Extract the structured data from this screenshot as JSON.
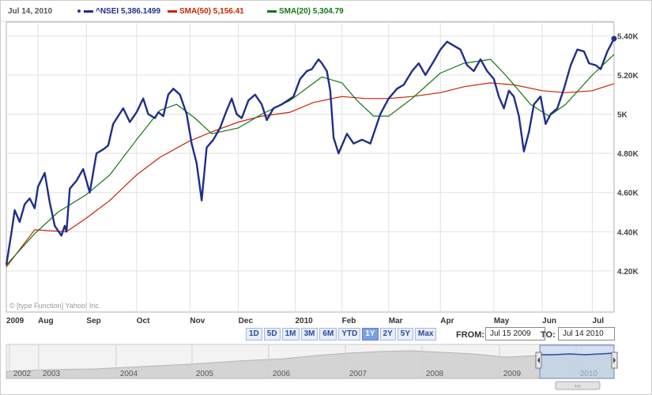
{
  "header": {
    "date": "Jul 14, 2010",
    "series": [
      {
        "label": "^NSEI",
        "value": "5,386.1499",
        "color": "#1f2f8a"
      },
      {
        "label": "SMA(50)",
        "value": "5,156.41",
        "color": "#cc2200"
      },
      {
        "label": "SMA(20)",
        "value": "5,304.79",
        "color": "#117711"
      }
    ]
  },
  "watermark": "© [type Function] Yahoo! Inc.",
  "range_buttons": [
    "1D",
    "5D",
    "1M",
    "3M",
    "6M",
    "YTD",
    "1Y",
    "2Y",
    "5Y",
    "Max"
  ],
  "range_active": "1Y",
  "from_label": "FROM:",
  "from_value": "Jul 15 2009",
  "to_label": "TO:",
  "to_value": "Jul 14 2010",
  "navigator": {
    "years": [
      "2002",
      "2003",
      "2004",
      "2005",
      "2006",
      "2007",
      "2008",
      "2009",
      "2010"
    ],
    "scroll_grip": "‹‹‹"
  },
  "chart_data": {
    "type": "line",
    "x_start": "2009-07-15",
    "x_end": "2010-07-14",
    "x_tick_labels": [
      {
        "label": "2009",
        "date": "2009-07-15",
        "bold": true
      },
      {
        "label": "Aug",
        "date": "2009-08-03"
      },
      {
        "label": "Sep",
        "date": "2009-09-01"
      },
      {
        "label": "Oct",
        "date": "2009-10-01"
      },
      {
        "label": "Nov",
        "date": "2009-11-02"
      },
      {
        "label": "Dec",
        "date": "2009-12-01"
      },
      {
        "label": "2010",
        "date": "2010-01-04",
        "bold": true
      },
      {
        "label": "Feb",
        "date": "2010-02-01"
      },
      {
        "label": "Mar",
        "date": "2010-03-01"
      },
      {
        "label": "Apr",
        "date": "2010-04-01"
      },
      {
        "label": "May",
        "date": "2010-05-03"
      },
      {
        "label": "Jun",
        "date": "2010-06-01"
      },
      {
        "label": "Jul",
        "date": "2010-07-01"
      }
    ],
    "y_ticks": [
      4200,
      4400,
      4600,
      4800,
      5000,
      5200,
      5400
    ],
    "y_tick_labels": [
      "4.20K",
      "4.40K",
      "4.60K",
      "4.80K",
      "5K",
      "5.20K",
      "5.40K"
    ],
    "ylim": [
      3990,
      5470
    ],
    "grid": true,
    "legend_position": "top-left",
    "series": [
      {
        "name": "^NSEI",
        "color": "#1f2f8a",
        "points": [
          [
            "2009-07-15",
            4230
          ],
          [
            "2009-07-18",
            4390
          ],
          [
            "2009-07-20",
            4510
          ],
          [
            "2009-07-23",
            4450
          ],
          [
            "2009-07-26",
            4540
          ],
          [
            "2009-07-29",
            4570
          ],
          [
            "2009-08-01",
            4520
          ],
          [
            "2009-08-03",
            4630
          ],
          [
            "2009-08-07",
            4700
          ],
          [
            "2009-08-10",
            4550
          ],
          [
            "2009-08-13",
            4430
          ],
          [
            "2009-08-17",
            4380
          ],
          [
            "2009-08-19",
            4430
          ],
          [
            "2009-08-20",
            4400
          ],
          [
            "2009-08-22",
            4620
          ],
          [
            "2009-08-26",
            4660
          ],
          [
            "2009-08-30",
            4720
          ],
          [
            "2009-09-03",
            4600
          ],
          [
            "2009-09-07",
            4800
          ],
          [
            "2009-09-11",
            4820
          ],
          [
            "2009-09-14",
            4840
          ],
          [
            "2009-09-17",
            4950
          ],
          [
            "2009-09-20",
            4990
          ],
          [
            "2009-09-23",
            5030
          ],
          [
            "2009-09-27",
            4960
          ],
          [
            "2009-10-01",
            5010
          ],
          [
            "2009-10-05",
            5080
          ],
          [
            "2009-10-08",
            5000
          ],
          [
            "2009-10-12",
            4980
          ],
          [
            "2009-10-14",
            5010
          ],
          [
            "2009-10-17",
            4990
          ],
          [
            "2009-10-20",
            5100
          ],
          [
            "2009-10-23",
            5130
          ],
          [
            "2009-10-27",
            5100
          ],
          [
            "2009-10-31",
            5000
          ],
          [
            "2009-11-03",
            4850
          ],
          [
            "2009-11-06",
            4750
          ],
          [
            "2009-11-09",
            4560
          ],
          [
            "2009-11-12",
            4830
          ],
          [
            "2009-11-16",
            4870
          ],
          [
            "2009-11-20",
            4930
          ],
          [
            "2009-11-24",
            5020
          ],
          [
            "2009-11-27",
            5080
          ],
          [
            "2009-11-30",
            5000
          ],
          [
            "2009-12-03",
            4980
          ],
          [
            "2009-12-07",
            5070
          ],
          [
            "2009-12-11",
            5100
          ],
          [
            "2009-12-15",
            5050
          ],
          [
            "2009-12-18",
            4970
          ],
          [
            "2009-12-22",
            5030
          ],
          [
            "2009-12-27",
            5050
          ],
          [
            "2010-01-03",
            5090
          ],
          [
            "2010-01-07",
            5180
          ],
          [
            "2010-01-11",
            5220
          ],
          [
            "2010-01-14",
            5230
          ],
          [
            "2010-01-18",
            5280
          ],
          [
            "2010-01-20",
            5260
          ],
          [
            "2010-01-23",
            5220
          ],
          [
            "2010-01-25",
            5120
          ],
          [
            "2010-01-27",
            4880
          ],
          [
            "2010-01-30",
            4800
          ],
          [
            "2010-02-04",
            4900
          ],
          [
            "2010-02-08",
            4850
          ],
          [
            "2010-02-13",
            4870
          ],
          [
            "2010-02-18",
            4850
          ],
          [
            "2010-02-24",
            5000
          ],
          [
            "2010-03-01",
            5080
          ],
          [
            "2010-03-06",
            5130
          ],
          [
            "2010-03-10",
            5150
          ],
          [
            "2010-03-15",
            5220
          ],
          [
            "2010-03-19",
            5260
          ],
          [
            "2010-03-23",
            5200
          ],
          [
            "2010-03-28",
            5270
          ],
          [
            "2010-04-01",
            5330
          ],
          [
            "2010-04-05",
            5370
          ],
          [
            "2010-04-09",
            5350
          ],
          [
            "2010-04-13",
            5330
          ],
          [
            "2010-04-17",
            5250
          ],
          [
            "2010-04-21",
            5220
          ],
          [
            "2010-04-25",
            5280
          ],
          [
            "2010-04-29",
            5220
          ],
          [
            "2010-05-03",
            5180
          ],
          [
            "2010-05-06",
            5090
          ],
          [
            "2010-05-09",
            5030
          ],
          [
            "2010-05-12",
            5120
          ],
          [
            "2010-05-15",
            5090
          ],
          [
            "2010-05-18",
            4990
          ],
          [
            "2010-05-21",
            4810
          ],
          [
            "2010-05-24",
            4910
          ],
          [
            "2010-05-27",
            5050
          ],
          [
            "2010-05-31",
            5090
          ],
          [
            "2010-06-03",
            4950
          ],
          [
            "2010-06-06",
            5000
          ],
          [
            "2010-06-10",
            5030
          ],
          [
            "2010-06-14",
            5130
          ],
          [
            "2010-06-18",
            5250
          ],
          [
            "2010-06-22",
            5330
          ],
          [
            "2010-06-26",
            5320
          ],
          [
            "2010-06-29",
            5260
          ],
          [
            "2010-07-03",
            5250
          ],
          [
            "2010-07-06",
            5230
          ],
          [
            "2010-07-10",
            5320
          ],
          [
            "2010-07-14",
            5386
          ]
        ]
      },
      {
        "name": "SMA(50)",
        "color": "#cc2200",
        "points": [
          [
            "2009-07-15",
            4220
          ],
          [
            "2009-08-01",
            4410
          ],
          [
            "2009-08-20",
            4400
          ],
          [
            "2009-09-01",
            4470
          ],
          [
            "2009-09-15",
            4560
          ],
          [
            "2009-10-01",
            4690
          ],
          [
            "2009-10-15",
            4780
          ],
          [
            "2009-11-01",
            4860
          ],
          [
            "2009-11-15",
            4910
          ],
          [
            "2009-12-01",
            4960
          ],
          [
            "2009-12-15",
            4990
          ],
          [
            "2010-01-01",
            5010
          ],
          [
            "2010-01-15",
            5060
          ],
          [
            "2010-02-01",
            5090
          ],
          [
            "2010-02-15",
            5080
          ],
          [
            "2010-03-01",
            5080
          ],
          [
            "2010-03-15",
            5090
          ],
          [
            "2010-04-01",
            5110
          ],
          [
            "2010-04-15",
            5140
          ],
          [
            "2010-05-01",
            5160
          ],
          [
            "2010-05-15",
            5150
          ],
          [
            "2010-06-01",
            5120
          ],
          [
            "2010-06-15",
            5110
          ],
          [
            "2010-07-01",
            5120
          ],
          [
            "2010-07-14",
            5156
          ]
        ]
      },
      {
        "name": "SMA(20)",
        "color": "#117711",
        "points": [
          [
            "2009-07-15",
            4230
          ],
          [
            "2009-08-01",
            4390
          ],
          [
            "2009-08-15",
            4500
          ],
          [
            "2009-09-01",
            4590
          ],
          [
            "2009-09-15",
            4690
          ],
          [
            "2009-10-01",
            4870
          ],
          [
            "2009-10-15",
            5020
          ],
          [
            "2009-10-25",
            5050
          ],
          [
            "2009-11-05",
            4980
          ],
          [
            "2009-11-15",
            4900
          ],
          [
            "2009-12-01",
            4930
          ],
          [
            "2009-12-15",
            5000
          ],
          [
            "2010-01-01",
            5070
          ],
          [
            "2010-01-20",
            5190
          ],
          [
            "2010-02-01",
            5160
          ],
          [
            "2010-02-10",
            5070
          ],
          [
            "2010-02-20",
            4990
          ],
          [
            "2010-03-01",
            4990
          ],
          [
            "2010-03-15",
            5080
          ],
          [
            "2010-04-01",
            5210
          ],
          [
            "2010-04-15",
            5260
          ],
          [
            "2010-05-01",
            5280
          ],
          [
            "2010-05-10",
            5200
          ],
          [
            "2010-05-25",
            5050
          ],
          [
            "2010-06-05",
            4990
          ],
          [
            "2010-06-15",
            5050
          ],
          [
            "2010-07-01",
            5200
          ],
          [
            "2010-07-14",
            5305
          ]
        ]
      }
    ],
    "last_value_marker": {
      "series": "^NSEI",
      "date": "2010-07-14",
      "value": 5386
    }
  }
}
